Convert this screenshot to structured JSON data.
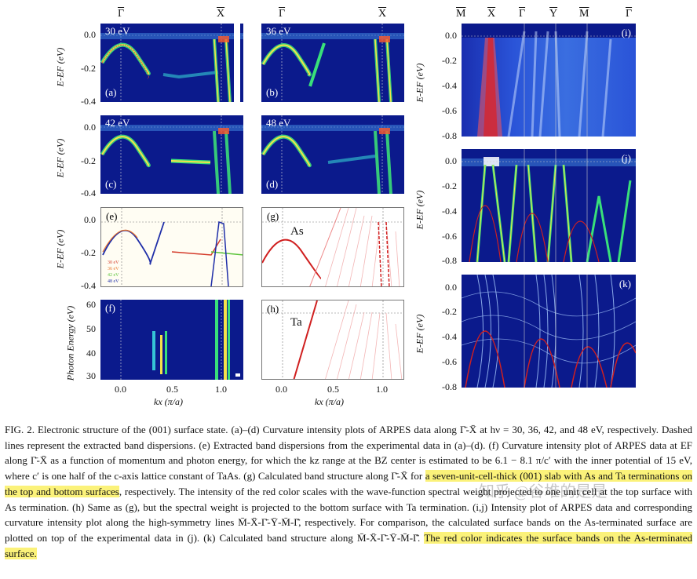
{
  "figure": {
    "symbols_left": [
      "Γ",
      "X"
    ],
    "symbols_right": [
      "M",
      "X",
      "Γ",
      "Y",
      "M",
      "Γ"
    ],
    "panels": {
      "a": {
        "energy": "30 eV",
        "label": "(a)"
      },
      "b": {
        "energy": "36 eV",
        "label": "(b)"
      },
      "c": {
        "energy": "42 eV",
        "label": "(c)"
      },
      "d": {
        "energy": "48 eV",
        "label": "(d)"
      },
      "e": {
        "label": "(e)",
        "legend": [
          "30 eV",
          "36 eV",
          "42 eV",
          "48 eV"
        ]
      },
      "f": {
        "label": "(f)"
      },
      "g": {
        "label": "(g)",
        "element": "As"
      },
      "h": {
        "label": "(h)",
        "element": "Ta"
      },
      "i": {
        "label": "(i)"
      },
      "j": {
        "label": "(j)"
      },
      "k": {
        "label": "(k)"
      }
    },
    "y_ticks_short": [
      "0.0",
      "-0.2",
      "-0.4"
    ],
    "y_ticks_long": [
      "0.0",
      "-0.2",
      "-0.4",
      "-0.6",
      "-0.8"
    ],
    "photon_ticks": [
      "60",
      "50",
      "40",
      "30"
    ],
    "x_ticks": [
      "0.0",
      "0.5",
      "1.0"
    ],
    "energy_axis_label": "E-EF (eV)",
    "photon_axis_label": "Photon Energy (eV)",
    "x_axis_label": "kx (π/a)",
    "watermark": "知乎 @谷堆的是是"
  },
  "caption": {
    "p1": "FIG. 2.   Electronic structure of the (001) surface state. (a)–(d) Curvature intensity plots of ARPES data along Γ̄-X̄ at hν = 30, 36, 42, and 48 eV, respectively. Dashed lines represent the extracted band dispersions. (e) Extracted band dispersions from the experimental data in (a)–(d). (f) Curvature intensity plot of ARPES data at EF along Γ̄-X̄ as a function of momentum and photon energy, for which the kz range at the BZ center is estimated to be 6.1 − 8.1 π/c′ with the inner potential of 15 eV, where c′ is one half of the c-axis lattice constant of TaAs. (g) Calculated band structure along Γ̄-X̄ for ",
    "h1": "a seven-unit-cell-thick (001) slab with As and Ta terminations on the top and bottom surfaces",
    "p2": ", respectively. The intensity of the red color scales with the wave-function spectral weight projected to one unit cell at the top surface with As termination. (h) Same as (g), but the spectral weight is projected to the bottom surface with Ta termination. (i,j) Intensity plot of ARPES data and corresponding curvature intensity plot along the high-symmetry lines M̄-X̄-Γ̄-Ȳ-M̄-Γ̄, respectively. For comparison, the calculated surface bands on the As-terminated surface are plotted on top of the experimental data in (j). (k) Calculated band structure along M̄-X̄-Γ̄-Ȳ-M̄-Γ̄. ",
    "h2": "The red color indicates the surface bands on the As-terminated surface."
  }
}
